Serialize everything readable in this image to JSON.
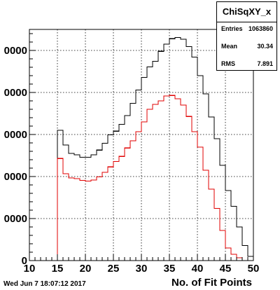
{
  "chart_data": {
    "type": "histogram",
    "title": "",
    "xlabel": "No. of Fit Points",
    "ylabel": "",
    "xlim": [
      10,
      50
    ],
    "ylim": [
      0,
      55000
    ],
    "bin_width": 1,
    "x_ticks": [
      10,
      15,
      20,
      25,
      30,
      35,
      40,
      45,
      50
    ],
    "y_tick_values": [
      0,
      10000,
      20000,
      30000,
      40000,
      50000
    ],
    "y_tick_labels": [
      "0",
      "0000",
      "0000",
      "0000",
      "0000",
      "0000"
    ],
    "grid": true,
    "series": [
      {
        "color": "#000000",
        "bin_edges_start": 10,
        "values": [
          0,
          0,
          0,
          0,
          0,
          31000,
          27500,
          25500,
          25200,
          24600,
          24600,
          25200,
          26300,
          27900,
          29900,
          30800,
          32400,
          34500,
          37400,
          40600,
          43600,
          46100,
          47400,
          49800,
          51500,
          52800,
          53100,
          52700,
          50900,
          48400,
          44000,
          39700,
          34200,
          29000,
          22700,
          16700,
          12900,
          8000,
          3600,
          1000
        ]
      },
      {
        "color": "#e00000",
        "bin_edges_start": 10,
        "values": [
          0,
          0,
          0,
          0,
          0,
          24300,
          20700,
          19700,
          19500,
          19100,
          18900,
          19200,
          19900,
          21000,
          22300,
          23600,
          24800,
          26800,
          28500,
          30700,
          33000,
          36000,
          37200,
          38000,
          39200,
          39300,
          38500,
          37000,
          34300,
          30700,
          27000,
          21500,
          17000,
          12400,
          7200,
          3000,
          1500,
          700,
          0,
          0
        ]
      }
    ]
  },
  "stats": {
    "title": "ChiSqXY_x",
    "rows": [
      {
        "key": "Entries",
        "value": "1063860"
      },
      {
        "key": "Mean",
        "value": "30.34"
      },
      {
        "key": "RMS",
        "value": "7.891"
      }
    ]
  },
  "footer": {
    "timestamp": "Wed Jun  7 18:07:12 2017"
  }
}
